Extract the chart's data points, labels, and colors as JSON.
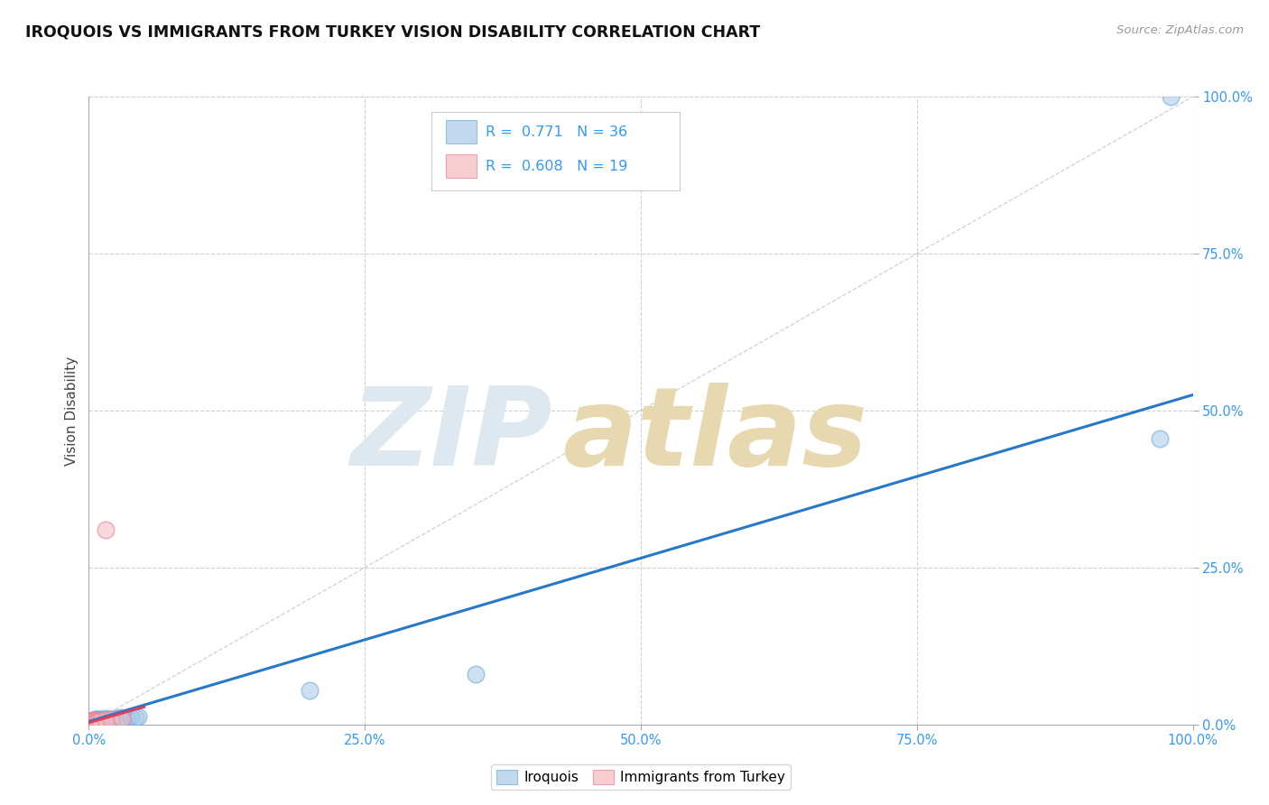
{
  "title": "IROQUOIS VS IMMIGRANTS FROM TURKEY VISION DISABILITY CORRELATION CHART",
  "source": "Source: ZipAtlas.com",
  "ylabel": "Vision Disability",
  "xlim": [
    0,
    1
  ],
  "ylim": [
    0,
    1
  ],
  "xticks": [
    0.0,
    0.25,
    0.5,
    0.75,
    1.0
  ],
  "yticks": [
    0.0,
    0.25,
    0.5,
    0.75,
    1.0
  ],
  "xticklabels": [
    "0.0%",
    "25.0%",
    "50.0%",
    "75.0%",
    "100.0%"
  ],
  "yticklabels": [
    "0.0%",
    "25.0%",
    "50.0%",
    "75.0%",
    "100.0%"
  ],
  "blue_R": 0.771,
  "blue_N": 36,
  "pink_R": 0.608,
  "pink_N": 19,
  "blue_color": "#a8c8e8",
  "blue_edge_color": "#6baed6",
  "pink_color": "#f4b8c0",
  "pink_edge_color": "#f08090",
  "blue_line_color": "#2878c8",
  "pink_line_color": "#d84060",
  "watermark_zip": "ZIP",
  "watermark_atlas": "atlas",
  "blue_line_x": [
    0.0,
    1.0
  ],
  "blue_line_y": [
    0.005,
    0.525
  ],
  "pink_line_x": [
    0.0,
    0.05
  ],
  "pink_line_y": [
    0.003,
    0.028
  ],
  "blue_scatter": [
    [
      0.001,
      0.003
    ],
    [
      0.002,
      0.004
    ],
    [
      0.002,
      0.006
    ],
    [
      0.003,
      0.003
    ],
    [
      0.003,
      0.005
    ],
    [
      0.004,
      0.004
    ],
    [
      0.004,
      0.007
    ],
    [
      0.005,
      0.005
    ],
    [
      0.005,
      0.008
    ],
    [
      0.006,
      0.004
    ],
    [
      0.006,
      0.006
    ],
    [
      0.007,
      0.005
    ],
    [
      0.007,
      0.008
    ],
    [
      0.008,
      0.006
    ],
    [
      0.008,
      0.009
    ],
    [
      0.009,
      0.005
    ],
    [
      0.009,
      0.007
    ],
    [
      0.01,
      0.006
    ],
    [
      0.01,
      0.009
    ],
    [
      0.011,
      0.007
    ],
    [
      0.012,
      0.008
    ],
    [
      0.015,
      0.006
    ],
    [
      0.015,
      0.01
    ],
    [
      0.018,
      0.008
    ],
    [
      0.02,
      0.007
    ],
    [
      0.022,
      0.009
    ],
    [
      0.025,
      0.01
    ],
    [
      0.028,
      0.011
    ],
    [
      0.035,
      0.01
    ],
    [
      0.038,
      0.012
    ],
    [
      0.042,
      0.011
    ],
    [
      0.045,
      0.012
    ],
    [
      0.2,
      0.055
    ],
    [
      0.35,
      0.08
    ],
    [
      0.97,
      0.455
    ],
    [
      0.98,
      1.0
    ]
  ],
  "pink_scatter": [
    [
      0.001,
      0.003
    ],
    [
      0.001,
      0.005
    ],
    [
      0.002,
      0.003
    ],
    [
      0.002,
      0.005
    ],
    [
      0.003,
      0.004
    ],
    [
      0.003,
      0.006
    ],
    [
      0.004,
      0.003
    ],
    [
      0.004,
      0.005
    ],
    [
      0.005,
      0.004
    ],
    [
      0.005,
      0.007
    ],
    [
      0.006,
      0.004
    ],
    [
      0.006,
      0.006
    ],
    [
      0.007,
      0.005
    ],
    [
      0.008,
      0.004
    ],
    [
      0.01,
      0.006
    ],
    [
      0.015,
      0.007
    ],
    [
      0.02,
      0.008
    ],
    [
      0.03,
      0.01
    ],
    [
      0.015,
      0.31
    ]
  ]
}
